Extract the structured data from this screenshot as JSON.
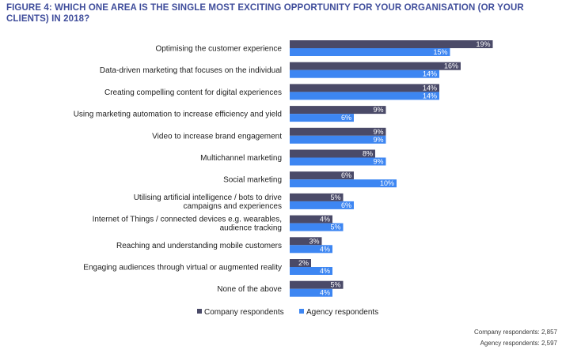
{
  "colors": {
    "company": "#4a4a68",
    "agency": "#3d86f2",
    "title": "#3f4d9b"
  },
  "footnotes": {
    "company": "Company respondents: 2,857",
    "agency": "Agency respondents: 2,597"
  },
  "chart_data": {
    "type": "bar",
    "orientation": "horizontal",
    "title": "FIGURE 4: WHICH ONE AREA IS THE SINGLE MOST EXCITING OPPORTUNITY FOR YOUR ORGANISATION (OR YOUR CLIENTS) IN 2018?",
    "grid": false,
    "legend_position": "bottom",
    "categories": [
      "Optimising the customer experience",
      "Data-driven marketing that focuses on the individual",
      "Creating compelling content for digital experiences",
      "Using marketing automation to increase efficiency and yield",
      "Video to increase brand engagement",
      "Multichannel marketing",
      "Social marketing",
      "Utilising artificial intelligence / bots to drive campaigns and experiences",
      "Internet of Things / connected devices e.g. wearables, audience tracking",
      "Reaching and understanding mobile customers",
      "Engaging audiences through virtual or augmented reality",
      "None of the above"
    ],
    "category_lines": [
      [
        "Optimising the customer experience"
      ],
      [
        "Data-driven marketing that focuses on the individual"
      ],
      [
        "Creating compelling content for digital experiences"
      ],
      [
        "Using marketing automation to increase efficiency and yield"
      ],
      [
        "Video to increase brand engagement"
      ],
      [
        "Multichannel marketing"
      ],
      [
        "Social marketing"
      ],
      [
        "Utilising artificial intelligence / bots to drive",
        "campaigns and experiences"
      ],
      [
        "Internet of Things / connected devices e.g. wearables,",
        "audience tracking"
      ],
      [
        "Reaching and understanding mobile customers"
      ],
      [
        "Engaging audiences through virtual or augmented reality"
      ],
      [
        "None of the above"
      ]
    ],
    "series": [
      {
        "name": "Company respondents",
        "values": [
          19,
          16,
          14,
          9,
          9,
          8,
          6,
          5,
          4,
          3,
          2,
          5
        ]
      },
      {
        "name": "Agency respondents",
        "values": [
          15,
          14,
          14,
          6,
          9,
          9,
          10,
          6,
          5,
          4,
          4,
          4
        ]
      }
    ],
    "value_suffix": "%",
    "xlim": [
      0,
      19
    ]
  }
}
